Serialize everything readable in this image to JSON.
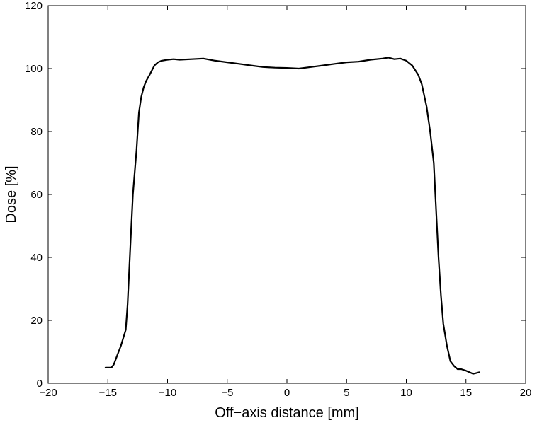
{
  "chart_data": {
    "type": "line",
    "xlabel": "Off−axis distance [mm]",
    "ylabel": "Dose [%]",
    "xlim": [
      -20,
      20
    ],
    "ylim": [
      0,
      120
    ],
    "xticks": [
      -20,
      -15,
      -10,
      -5,
      0,
      5,
      10,
      15,
      20
    ],
    "yticks": [
      0,
      20,
      40,
      60,
      80,
      100,
      120
    ],
    "xtick_labels": [
      "−20",
      "−15",
      "−10",
      "−5",
      "0",
      "5",
      "10",
      "15",
      "20"
    ],
    "ytick_labels": [
      "0",
      "20",
      "40",
      "60",
      "80",
      "100",
      "120"
    ],
    "grid": false,
    "series": [
      {
        "color": "#000000",
        "x": [
          -15.2,
          -14.7,
          -14.5,
          -14.2,
          -13.9,
          -13.5,
          -13.35,
          -13.1,
          -12.9,
          -12.6,
          -12.4,
          -12.2,
          -12.0,
          -11.8,
          -11.5,
          -11.1,
          -10.8,
          -10.5,
          -10.0,
          -9.5,
          -9.0,
          -8.0,
          -7.0,
          -6.0,
          -5.0,
          -4.0,
          -3.0,
          -2.0,
          -1.0,
          0.0,
          1.0,
          2.0,
          3.0,
          4.0,
          5.0,
          6.0,
          7.0,
          8.0,
          8.5,
          9.0,
          9.5,
          10.0,
          10.5,
          11.0,
          11.3,
          11.7,
          12.0,
          12.3,
          12.5,
          12.7,
          12.9,
          13.1,
          13.4,
          13.7,
          14.0,
          14.3,
          14.6,
          15.0,
          15.3,
          15.6,
          15.8,
          16.1
        ],
        "y": [
          5,
          5,
          6,
          9,
          12,
          17,
          25,
          45,
          60,
          74,
          86,
          91,
          94,
          96,
          98,
          101,
          102,
          102.5,
          102.8,
          103,
          102.8,
          103,
          103.2,
          102.5,
          102,
          101.5,
          101,
          100.5,
          100.3,
          100.2,
          100,
          100.5,
          101,
          101.5,
          102,
          102.2,
          102.8,
          103.2,
          103.5,
          103,
          103.2,
          102.5,
          101,
          98,
          95,
          88,
          80,
          70,
          55,
          40,
          28,
          19,
          12,
          7,
          5.5,
          4.5,
          4.5,
          4,
          3.5,
          3,
          3.2,
          3.5
        ]
      }
    ]
  }
}
